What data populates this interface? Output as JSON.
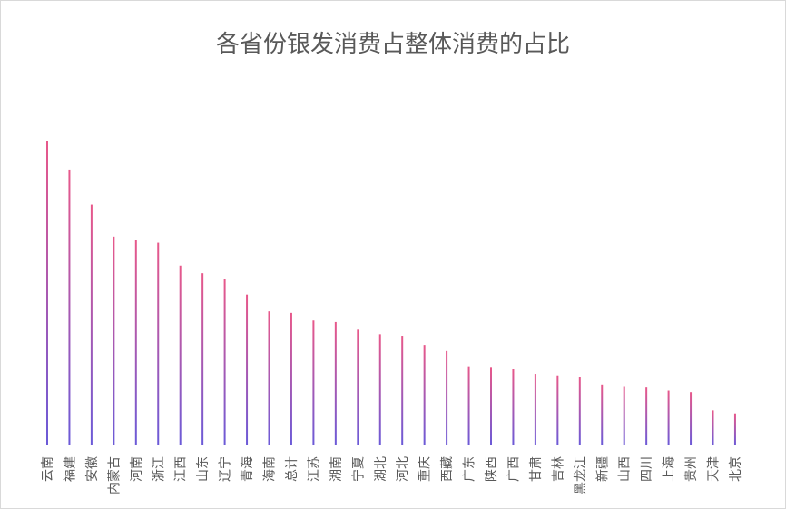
{
  "chart_data": {
    "type": "bar",
    "title": "各省份银发消费占整体消费的占比",
    "xlabel": "",
    "ylabel": "",
    "categories": [
      "云南",
      "福建",
      "安徽",
      "内蒙古",
      "河南",
      "浙江",
      "江西",
      "山东",
      "辽宁",
      "青海",
      "海南",
      "总计",
      "江苏",
      "湖南",
      "宁夏",
      "湖北",
      "河北",
      "重庆",
      "西藏",
      "广东",
      "陕西",
      "广西",
      "甘肃",
      "吉林",
      "黑龙江",
      "新疆",
      "山西",
      "四川",
      "上海",
      "贵州",
      "天津",
      "北京"
    ],
    "values": [
      100,
      90.5,
      79,
      68.5,
      67.5,
      66.5,
      59,
      56.5,
      54.5,
      49.5,
      44,
      43.5,
      41,
      40.5,
      38,
      36.5,
      36,
      33,
      31,
      26,
      25.5,
      25,
      23.5,
      23,
      22.5,
      20,
      19.5,
      19,
      18,
      17.5,
      11.5,
      10.5
    ],
    "ylim": [
      0,
      100
    ],
    "grid": false,
    "legend": "none",
    "gradient_colors": {
      "top": "#e8588a",
      "bottom": "#6a5ad8"
    }
  }
}
